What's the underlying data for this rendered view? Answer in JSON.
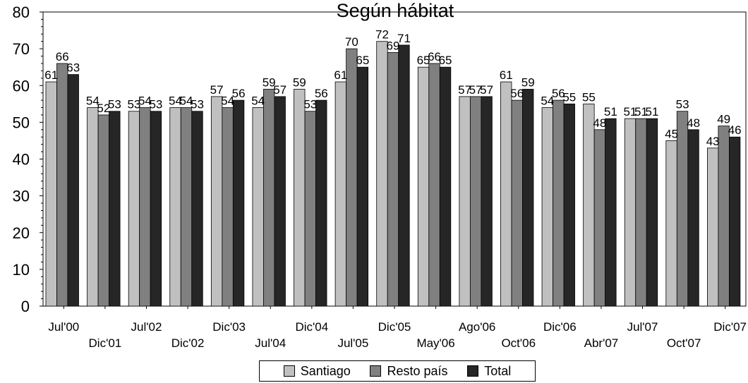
{
  "chart_data": {
    "type": "bar",
    "title": "Según hábitat",
    "xlabel": "",
    "ylabel": "",
    "ylim": [
      0,
      80
    ],
    "yticks": [
      0,
      10,
      20,
      30,
      40,
      50,
      60,
      70,
      80
    ],
    "grid": false,
    "legend_position": "bottom",
    "categories": [
      "Jul'00",
      "Dic'01",
      "Jul'02",
      "Dic'02",
      "Dic'03",
      "Jul'04",
      "Dic'04",
      "Jul'05",
      "Dic'05",
      "May'06",
      "Ago'06",
      "Oct'06",
      "Dic'06",
      "Abr'07",
      "Jul'07",
      "Oct'07",
      "Dic'07"
    ],
    "series": [
      {
        "name": "Santiago",
        "color": "#c0c0c0",
        "values": [
          61,
          54,
          53,
          54,
          57,
          54,
          59,
          61,
          72,
          65,
          57,
          61,
          54,
          55,
          51,
          45,
          43
        ]
      },
      {
        "name": "Resto país",
        "color": "#808080",
        "values": [
          66,
          52,
          54,
          54,
          54,
          59,
          53,
          70,
          69,
          66,
          57,
          56,
          56,
          48,
          51,
          53,
          49
        ]
      },
      {
        "name": "Total",
        "color": "#262626",
        "values": [
          63,
          53,
          53,
          53,
          56,
          57,
          56,
          65,
          71,
          65,
          57,
          59,
          55,
          51,
          51,
          48,
          46
        ]
      }
    ]
  }
}
